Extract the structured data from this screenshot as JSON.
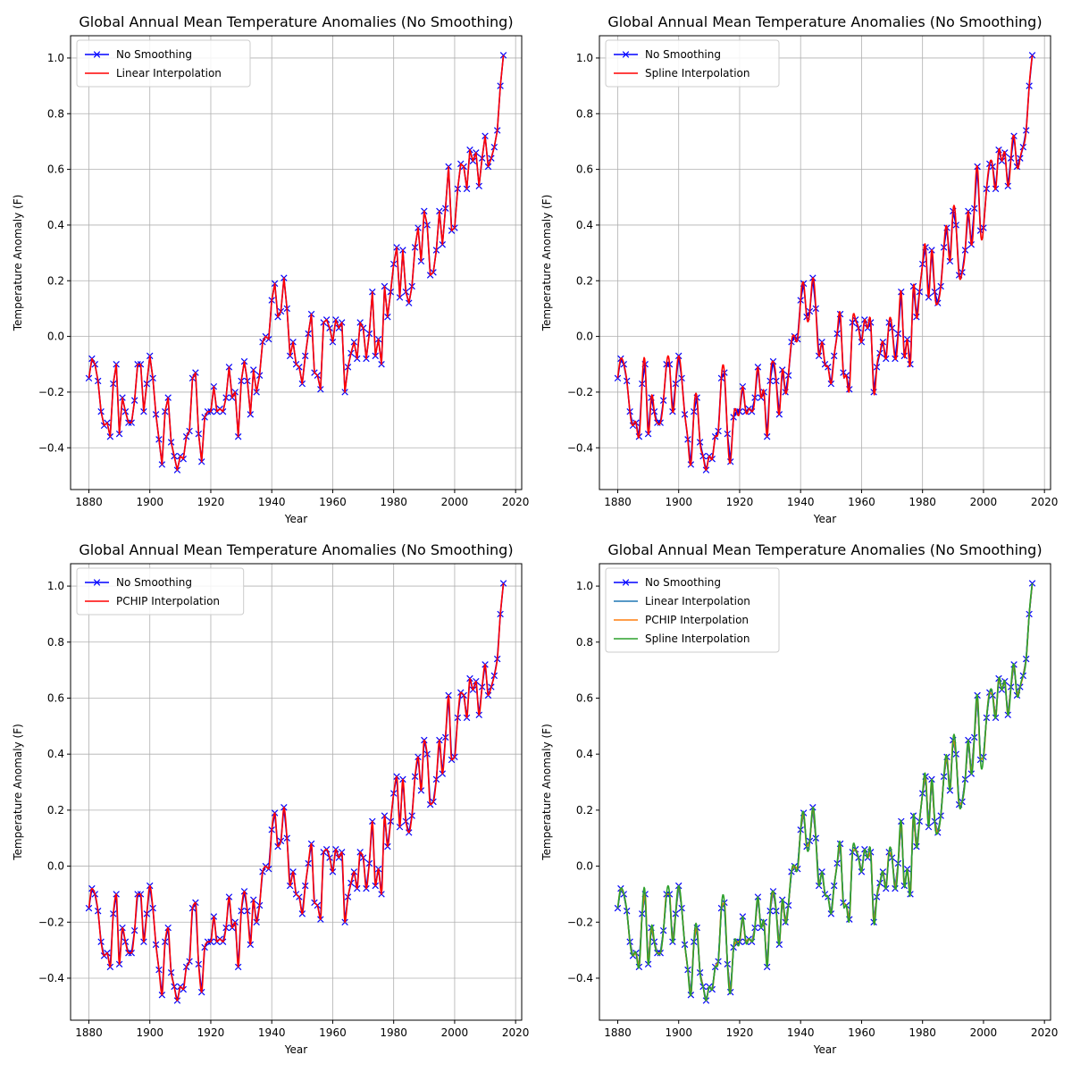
{
  "chart_data": [
    {
      "type": "line",
      "title": "Global Annual Mean Temperature Anomalies (No Smoothing)",
      "xlabel": "Year",
      "ylabel": "Temperature Anomaly (F)",
      "xlim": [
        1874,
        2022
      ],
      "ylim": [
        -0.55,
        1.08
      ],
      "xticks": [
        "1880",
        "1900",
        "1920",
        "1940",
        "1960",
        "1980",
        "2000",
        "2020"
      ],
      "yticks": [
        "-0.4",
        "-0.2",
        "0.0",
        "0.2",
        "0.4",
        "0.6",
        "0.8",
        "1.0"
      ],
      "grid": true,
      "legend": "upper left",
      "series": [
        {
          "name": "No Smoothing",
          "color": "#0000ff",
          "marker": "x",
          "data_ref": "annual"
        },
        {
          "name": "Linear Interpolation",
          "color": "#ff0000",
          "method": "linear",
          "data_ref": "annual"
        }
      ]
    },
    {
      "type": "line",
      "title": "Global Annual Mean Temperature Anomalies (No Smoothing)",
      "xlabel": "Year",
      "ylabel": "Temperature Anomaly (F)",
      "xlim": [
        1874,
        2022
      ],
      "ylim": [
        -0.55,
        1.08
      ],
      "xticks": [
        "1880",
        "1900",
        "1920",
        "1940",
        "1960",
        "1980",
        "2000",
        "2020"
      ],
      "yticks": [
        "-0.4",
        "-0.2",
        "0.0",
        "0.2",
        "0.4",
        "0.6",
        "0.8",
        "1.0"
      ],
      "grid": true,
      "legend": "upper left",
      "series": [
        {
          "name": "No Smoothing",
          "color": "#0000ff",
          "marker": "x",
          "data_ref": "annual"
        },
        {
          "name": "Spline Interpolation",
          "color": "#ff0000",
          "method": "spline",
          "data_ref": "annual"
        }
      ]
    },
    {
      "type": "line",
      "title": "Global Annual Mean Temperature Anomalies (No Smoothing)",
      "xlabel": "Year",
      "ylabel": "Temperature Anomaly (F)",
      "xlim": [
        1874,
        2022
      ],
      "ylim": [
        -0.55,
        1.08
      ],
      "xticks": [
        "1880",
        "1900",
        "1920",
        "1940",
        "1960",
        "1980",
        "2000",
        "2020"
      ],
      "yticks": [
        "-0.4",
        "-0.2",
        "0.0",
        "0.2",
        "0.4",
        "0.6",
        "0.8",
        "1.0"
      ],
      "grid": true,
      "legend": "upper left",
      "series": [
        {
          "name": "No Smoothing",
          "color": "#0000ff",
          "marker": "x",
          "data_ref": "annual"
        },
        {
          "name": "PCHIP Interpolation",
          "color": "#ff0000",
          "method": "pchip",
          "data_ref": "annual"
        }
      ]
    },
    {
      "type": "line",
      "title": "Global Annual Mean Temperature Anomalies (No Smoothing)",
      "xlabel": "Year",
      "ylabel": "Temperature Anomaly (F)",
      "xlim": [
        1874,
        2022
      ],
      "ylim": [
        -0.55,
        1.08
      ],
      "xticks": [
        "1880",
        "1900",
        "1920",
        "1940",
        "1960",
        "1980",
        "2000",
        "2020"
      ],
      "yticks": [
        "-0.4",
        "-0.2",
        "0.0",
        "0.2",
        "0.4",
        "0.6",
        "0.8",
        "1.0"
      ],
      "grid": false,
      "legend": "upper left",
      "series": [
        {
          "name": "No Smoothing",
          "color": "#0000ff",
          "marker": "x",
          "data_ref": "annual"
        },
        {
          "name": "Linear Interpolation",
          "color": "#1f77b4",
          "method": "linear",
          "data_ref": "annual"
        },
        {
          "name": "PCHIP Interpolation",
          "color": "#ff7f0e",
          "method": "pchip",
          "data_ref": "annual"
        },
        {
          "name": "Spline Interpolation",
          "color": "#2ca02c",
          "method": "spline",
          "data_ref": "annual"
        }
      ]
    }
  ],
  "annual": {
    "x": [
      1880,
      1881,
      1882,
      1883,
      1884,
      1885,
      1886,
      1887,
      1888,
      1889,
      1890,
      1891,
      1892,
      1893,
      1894,
      1895,
      1896,
      1897,
      1898,
      1899,
      1900,
      1901,
      1902,
      1903,
      1904,
      1905,
      1906,
      1907,
      1908,
      1909,
      1910,
      1911,
      1912,
      1913,
      1914,
      1915,
      1916,
      1917,
      1918,
      1919,
      1920,
      1921,
      1922,
      1923,
      1924,
      1925,
      1926,
      1927,
      1928,
      1929,
      1930,
      1931,
      1932,
      1933,
      1934,
      1935,
      1936,
      1937,
      1938,
      1939,
      1940,
      1941,
      1942,
      1943,
      1944,
      1945,
      1946,
      1947,
      1948,
      1949,
      1950,
      1951,
      1952,
      1953,
      1954,
      1955,
      1956,
      1957,
      1958,
      1959,
      1960,
      1961,
      1962,
      1963,
      1964,
      1965,
      1966,
      1967,
      1968,
      1969,
      1970,
      1971,
      1972,
      1973,
      1974,
      1975,
      1976,
      1977,
      1978,
      1979,
      1980,
      1981,
      1982,
      1983,
      1984,
      1985,
      1986,
      1987,
      1988,
      1989,
      1990,
      1991,
      1992,
      1993,
      1994,
      1995,
      1996,
      1997,
      1998,
      1999,
      2000,
      2001,
      2002,
      2003,
      2004,
      2005,
      2006,
      2007,
      2008,
      2009,
      2010,
      2011,
      2012,
      2013,
      2014,
      2015,
      2016
    ],
    "y": [
      -0.15,
      -0.08,
      -0.1,
      -0.16,
      -0.27,
      -0.32,
      -0.31,
      -0.36,
      -0.17,
      -0.1,
      -0.35,
      -0.22,
      -0.27,
      -0.31,
      -0.31,
      -0.23,
      -0.1,
      -0.1,
      -0.27,
      -0.17,
      -0.07,
      -0.15,
      -0.28,
      -0.37,
      -0.46,
      -0.27,
      -0.22,
      -0.38,
      -0.43,
      -0.48,
      -0.43,
      -0.44,
      -0.36,
      -0.34,
      -0.15,
      -0.13,
      -0.35,
      -0.45,
      -0.29,
      -0.27,
      -0.27,
      -0.18,
      -0.27,
      -0.26,
      -0.27,
      -0.22,
      -0.11,
      -0.22,
      -0.2,
      -0.36,
      -0.16,
      -0.09,
      -0.16,
      -0.28,
      -0.12,
      -0.2,
      -0.14,
      -0.02,
      0.0,
      -0.01,
      0.13,
      0.19,
      0.07,
      0.09,
      0.21,
      0.1,
      -0.07,
      -0.02,
      -0.1,
      -0.11,
      -0.17,
      -0.07,
      0.01,
      0.08,
      -0.13,
      -0.14,
      -0.19,
      0.05,
      0.06,
      0.03,
      -0.02,
      0.06,
      0.03,
      0.05,
      -0.2,
      -0.11,
      -0.06,
      -0.02,
      -0.08,
      0.05,
      0.03,
      -0.08,
      0.01,
      0.16,
      -0.07,
      -0.01,
      -0.1,
      0.18,
      0.07,
      0.16,
      0.26,
      0.32,
      0.14,
      0.31,
      0.16,
      0.12,
      0.18,
      0.32,
      0.39,
      0.27,
      0.45,
      0.4,
      0.22,
      0.23,
      0.31,
      0.45,
      0.33,
      0.46,
      0.61,
      0.38,
      0.39,
      0.53,
      0.62,
      0.61,
      0.53,
      0.67,
      0.63,
      0.66,
      0.54,
      0.64,
      0.72,
      0.61,
      0.64,
      0.68,
      0.74,
      0.9,
      1.01
    ]
  }
}
